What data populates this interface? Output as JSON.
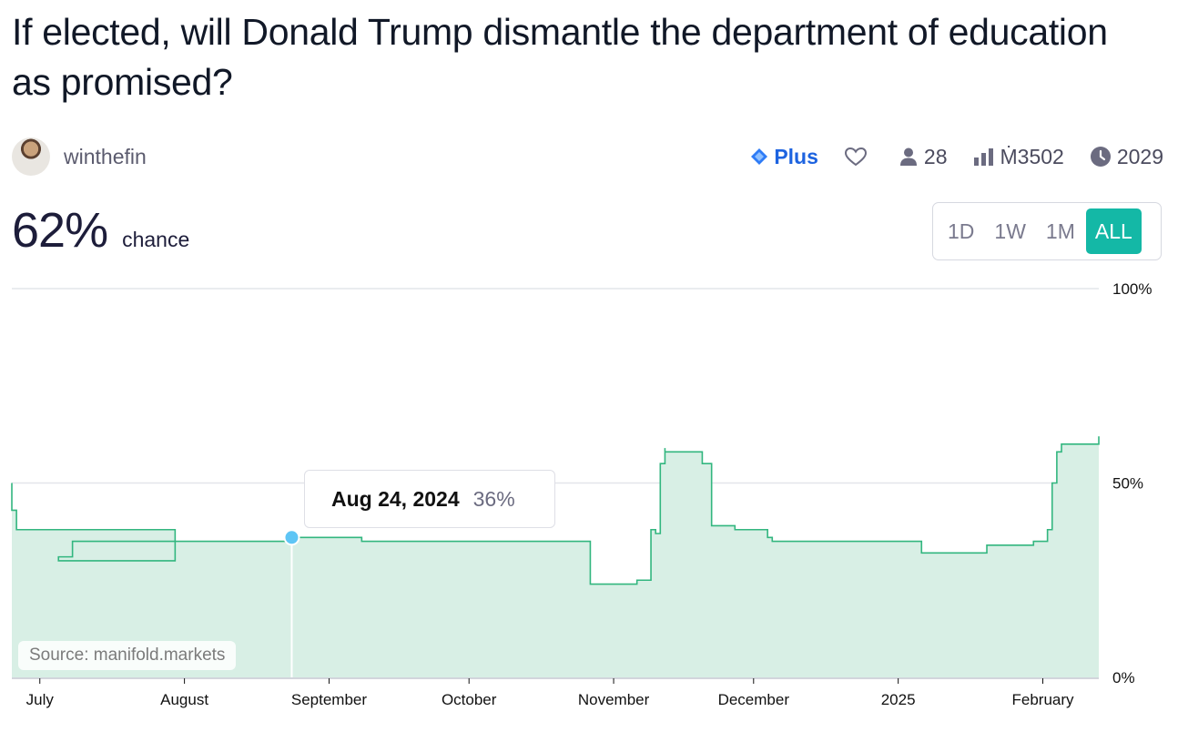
{
  "question": {
    "title": "If elected, will Donald Trump dismantle the department of education as promised?"
  },
  "author": {
    "name": "winthefin"
  },
  "stats": {
    "tier": "Plus",
    "traders": "28",
    "volume": "Ṁ3502",
    "close_year": "2029"
  },
  "probability": {
    "value": "62%",
    "label": "chance"
  },
  "time_ranges": [
    "1D",
    "1W",
    "1M",
    "ALL"
  ],
  "selected_range": "ALL",
  "tooltip": {
    "date": "Aug 24, 2024",
    "value": "36%"
  },
  "source_label": "Source: manifold.markets",
  "colors": {
    "line": "#32b67f",
    "fill": "#d8efe5",
    "accent": "#14b8a6",
    "plus": "#1d63e0",
    "marker": "#5ec5f5"
  },
  "chart_data": {
    "type": "area",
    "x_start": "2024-06-25",
    "x_end": "2025-02-13",
    "ylim": [
      0,
      100
    ],
    "y_ticks": [
      {
        "value": 100,
        "label": "100%"
      },
      {
        "value": 50,
        "label": "50%"
      },
      {
        "value": 0,
        "label": "0%"
      }
    ],
    "x_ticks": [
      {
        "date": "2024-07-01",
        "label": "July"
      },
      {
        "date": "2024-08-01",
        "label": "August"
      },
      {
        "date": "2024-09-01",
        "label": "September"
      },
      {
        "date": "2024-10-01",
        "label": "October"
      },
      {
        "date": "2024-11-01",
        "label": "November"
      },
      {
        "date": "2024-12-01",
        "label": "December"
      },
      {
        "date": "2025-01-01",
        "label": "2025"
      },
      {
        "date": "2025-02-01",
        "label": "February"
      }
    ],
    "series": [
      {
        "points": [
          [
            "2024-06-25",
            50
          ],
          [
            "2024-06-25",
            43
          ],
          [
            "2024-06-26",
            38
          ],
          [
            "2024-06-30",
            38
          ],
          [
            "2024-07-30",
            30
          ],
          [
            "2024-07-05",
            31
          ],
          [
            "2024-07-08",
            31
          ],
          [
            "2024-07-08",
            35
          ],
          [
            "2024-08-24",
            36
          ],
          [
            "2024-09-07",
            36
          ],
          [
            "2024-09-08",
            35
          ],
          [
            "2024-10-27",
            35
          ],
          [
            "2024-10-27",
            24
          ],
          [
            "2024-11-06",
            24
          ],
          [
            "2024-11-06",
            25
          ],
          [
            "2024-11-09",
            25
          ],
          [
            "2024-11-09",
            38
          ],
          [
            "2024-11-10",
            37
          ],
          [
            "2024-11-11",
            37
          ],
          [
            "2024-11-11",
            55
          ],
          [
            "2024-11-12",
            56
          ],
          [
            "2024-11-12",
            59
          ],
          [
            "2024-11-12",
            58
          ],
          [
            "2024-11-20",
            58
          ],
          [
            "2024-11-20",
            55
          ],
          [
            "2024-11-22",
            55
          ],
          [
            "2024-11-22",
            39
          ],
          [
            "2024-11-26",
            39
          ],
          [
            "2024-11-27",
            38
          ],
          [
            "2024-12-03",
            38
          ],
          [
            "2024-12-04",
            36
          ],
          [
            "2024-12-05",
            35
          ],
          [
            "2025-01-05",
            35
          ],
          [
            "2025-01-06",
            32
          ],
          [
            "2025-01-20",
            32
          ],
          [
            "2025-01-20",
            34
          ],
          [
            "2025-01-30",
            34
          ],
          [
            "2025-01-30",
            35
          ],
          [
            "2025-02-02",
            35
          ],
          [
            "2025-02-02",
            38
          ],
          [
            "2025-02-03",
            50
          ],
          [
            "2025-02-04",
            55
          ],
          [
            "2025-02-04",
            58
          ],
          [
            "2025-02-05",
            60
          ],
          [
            "2025-02-13",
            60
          ],
          [
            "2025-02-13",
            62
          ]
        ]
      }
    ],
    "highlight": {
      "date": "2024-08-24",
      "value": 36
    },
    "grid": true
  }
}
